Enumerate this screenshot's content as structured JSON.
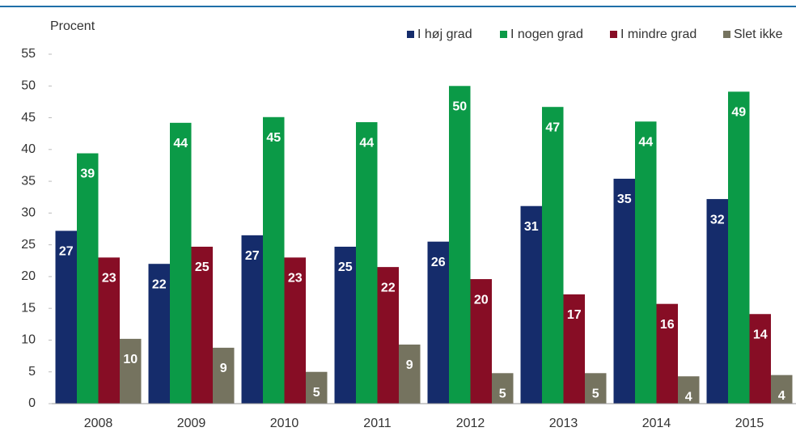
{
  "chart_data": {
    "type": "bar",
    "y_label": "Procent",
    "categories": [
      "2008",
      "2009",
      "2010",
      "2011",
      "2012",
      "2013",
      "2014",
      "2015"
    ],
    "series": [
      {
        "name": "I høj grad",
        "color": "#152c6b",
        "values": [
          27.2,
          22.0,
          26.5,
          24.7,
          25.5,
          31.1,
          35.4,
          32.2
        ],
        "value_labels": [
          "27",
          "22",
          "27",
          "25",
          "26",
          "31",
          "35",
          "32"
        ]
      },
      {
        "name": "I nogen grad",
        "color": "#0b9a47",
        "values": [
          39.4,
          44.2,
          45.1,
          44.3,
          50.0,
          46.7,
          44.4,
          49.1
        ],
        "value_labels": [
          "39",
          "44",
          "45",
          "44",
          "50",
          "47",
          "44",
          "49"
        ]
      },
      {
        "name": "I mindre grad",
        "color": "#870d25",
        "values": [
          23.0,
          24.7,
          23.0,
          21.5,
          19.6,
          17.2,
          15.7,
          14.1
        ],
        "value_labels": [
          "23",
          "25",
          "23",
          "22",
          "20",
          "17",
          "16",
          "14"
        ]
      },
      {
        "name": "Slet ikke",
        "color": "#75735f",
        "values": [
          10.2,
          8.8,
          5.0,
          9.3,
          4.8,
          4.8,
          4.3,
          4.5
        ],
        "value_labels": [
          "10",
          "9",
          "5",
          "9",
          "5",
          "5",
          "4",
          "4"
        ]
      }
    ],
    "ylim": [
      0,
      55
    ],
    "yticks": [
      0,
      5,
      10,
      15,
      20,
      25,
      30,
      35,
      40,
      45,
      50,
      55
    ],
    "grid": false,
    "legend": "top-right"
  }
}
